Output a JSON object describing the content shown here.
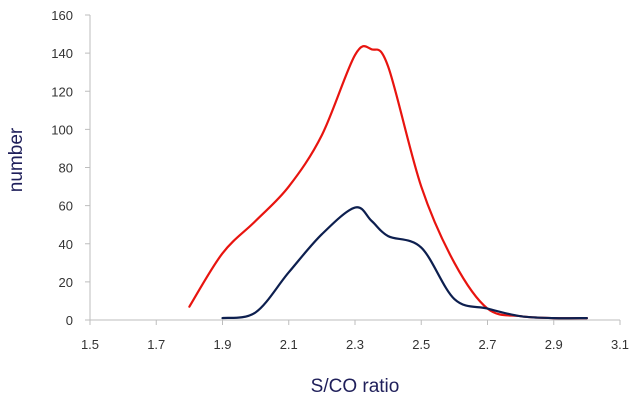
{
  "chart_data": {
    "type": "line",
    "title": "",
    "xlabel": "S/CO ratio",
    "ylabel": "number",
    "xlim": [
      1.5,
      3.1
    ],
    "ylim": [
      0,
      160
    ],
    "xticks": [
      "1.5",
      "1.7",
      "1.9",
      "2.1",
      "2.3",
      "2.5",
      "2.7",
      "2.9",
      "3.1"
    ],
    "yticks": [
      "0",
      "20",
      "40",
      "60",
      "80",
      "100",
      "120",
      "140",
      "160"
    ],
    "grid": false,
    "legend": "none",
    "series": [
      {
        "color": "#e8140f",
        "x": [
          1.8,
          1.9,
          2.0,
          2.1,
          2.2,
          2.3,
          2.35,
          2.4,
          2.5,
          2.6,
          2.7,
          2.8,
          2.9,
          3.0
        ],
        "y": [
          7,
          35,
          52,
          70,
          97,
          139,
          142,
          133,
          70,
          30,
          6,
          2,
          1,
          1
        ]
      },
      {
        "color": "#0d1f4f",
        "x": [
          1.9,
          2.0,
          2.1,
          2.2,
          2.3,
          2.35,
          2.4,
          2.5,
          2.6,
          2.7,
          2.8,
          2.9,
          3.0
        ],
        "y": [
          1,
          4,
          25,
          45,
          59,
          52,
          44,
          38,
          11,
          6,
          2,
          1,
          1
        ]
      }
    ]
  }
}
